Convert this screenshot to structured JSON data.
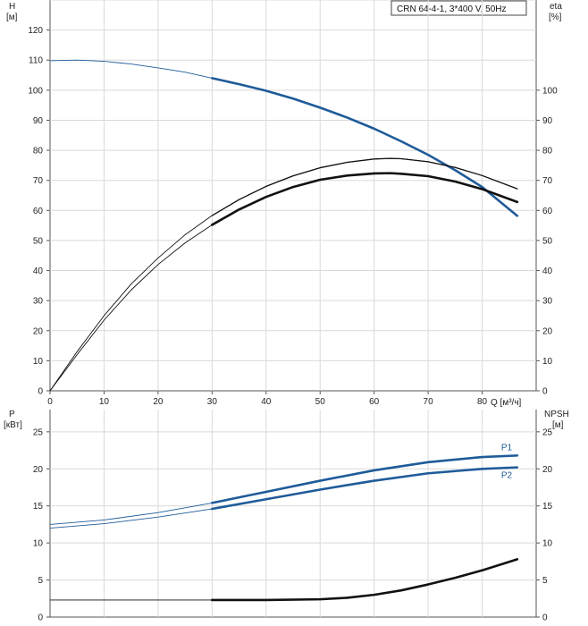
{
  "chart_data": [
    {
      "type": "line",
      "title": "CRN 64-4-1, 3*400 V, 50Hz",
      "xlabel": "Q [м³/ч]",
      "xlim": [
        0,
        90
      ],
      "x_ticks": [
        0,
        10,
        20,
        30,
        40,
        50,
        60,
        70,
        80
      ],
      "y_left": {
        "label": "H",
        "unit": "[м]",
        "lim": [
          0,
          130
        ],
        "ticks": [
          0,
          10,
          20,
          30,
          40,
          50,
          60,
          70,
          80,
          90,
          100,
          110,
          120
        ]
      },
      "y_right": {
        "label": "eta",
        "unit": "[%]",
        "lim": [
          0,
          130
        ],
        "ticks": [
          0,
          10,
          20,
          30,
          40,
          50,
          60,
          70,
          80,
          90,
          100
        ]
      },
      "grid": true,
      "series": [
        {
          "axis": "left",
          "color": "#1f5b99",
          "x": [
            0,
            5,
            10,
            15,
            20,
            25,
            30,
            35,
            40,
            45,
            50,
            55,
            60,
            65,
            70,
            75,
            80,
            86.5
          ],
          "y": [
            109.8,
            110,
            109.6,
            108.7,
            107.4,
            106,
            104,
            102,
            99.8,
            97.2,
            94.2,
            90.9,
            87.2,
            83,
            78.5,
            73.4,
            67.8,
            58.2
          ]
        },
        {
          "axis": "right",
          "color": "#111111",
          "x": [
            0,
            5,
            10,
            15,
            20,
            25,
            30,
            35,
            40,
            45,
            50,
            55,
            60,
            63,
            65,
            70,
            75,
            80,
            86.5
          ],
          "y": [
            0,
            13,
            25,
            35.5,
            44.2,
            51.9,
            58.3,
            63.6,
            68,
            71.5,
            74.2,
            76,
            77.1,
            77.3,
            77.2,
            76.2,
            74.3,
            71.6,
            67.2
          ]
        },
        {
          "axis": "right",
          "color": "#111111",
          "x": [
            0,
            5,
            10,
            15,
            20,
            25,
            30,
            35,
            40,
            45,
            50,
            55,
            60,
            63,
            65,
            70,
            75,
            80,
            86.5
          ],
          "y": [
            0,
            12,
            23.5,
            33.5,
            42,
            49.2,
            55.2,
            60.3,
            64.5,
            67.8,
            70.2,
            71.6,
            72.3,
            72.4,
            72.2,
            71.4,
            69.6,
            67.1,
            62.8
          ]
        }
      ]
    },
    {
      "type": "line",
      "xlabel": "",
      "xlim": [
        0,
        90
      ],
      "y_left": {
        "label": "P",
        "unit": "[кВт]",
        "lim": [
          0,
          28
        ],
        "ticks": [
          0,
          5,
          10,
          15,
          20,
          25
        ]
      },
      "y_right": {
        "label": "NPSH",
        "unit": "[м]",
        "lim": [
          0,
          28
        ],
        "ticks": [
          0,
          5,
          10,
          15,
          20,
          25
        ]
      },
      "grid": true,
      "series": [
        {
          "name": "P1",
          "axis": "left",
          "color": "#1f5b99",
          "x": [
            0,
            10,
            20,
            30,
            40,
            50,
            60,
            70,
            80,
            86.5
          ],
          "y": [
            12.5,
            13.1,
            14.1,
            15.4,
            16.9,
            18.4,
            19.8,
            20.9,
            21.6,
            21.8
          ]
        },
        {
          "name": "P2",
          "axis": "left",
          "color": "#1f5b99",
          "x": [
            0,
            10,
            20,
            30,
            40,
            50,
            60,
            70,
            80,
            86.5
          ],
          "y": [
            12,
            12.6,
            13.5,
            14.6,
            15.9,
            17.2,
            18.4,
            19.4,
            20,
            20.2
          ]
        },
        {
          "axis": "right",
          "color": "#111111",
          "x": [
            0,
            10,
            20,
            30,
            40,
            50,
            55,
            60,
            65,
            70,
            75,
            80,
            86.5
          ],
          "y": [
            2.3,
            2.3,
            2.3,
            2.3,
            2.3,
            2.4,
            2.6,
            3,
            3.6,
            4.4,
            5.3,
            6.3,
            7.8
          ]
        }
      ]
    }
  ]
}
